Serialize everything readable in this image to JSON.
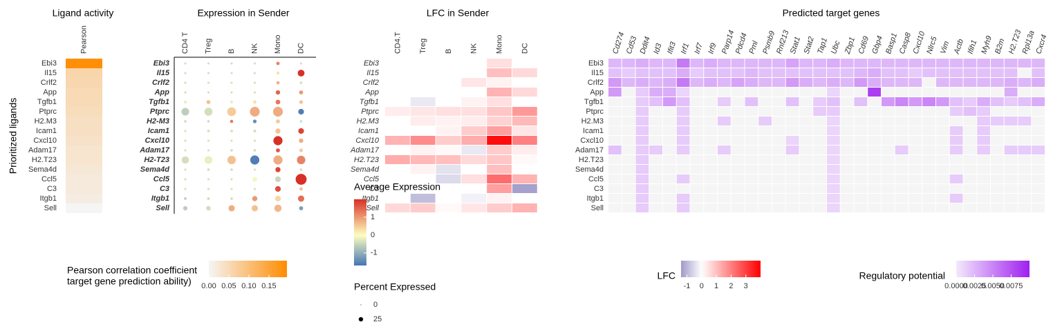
{
  "chart_data": [
    {
      "type": "heatmap",
      "title": "Ligand activity",
      "ylabel": "Prioritized ligands",
      "categories": [
        "Pearson"
      ],
      "rows": [
        "Ebi3",
        "Il15",
        "Crlf2",
        "App",
        "Tgfb1",
        "Ptprc",
        "H2.M3",
        "Icam1",
        "Cxcl10",
        "Adam17",
        "H2.T23",
        "Sema4d",
        "Ccl5",
        "C3",
        "Itgb1",
        "Sell"
      ],
      "values": [
        [
          0.19
        ],
        [
          0.06
        ],
        [
          0.055
        ],
        [
          0.05
        ],
        [
          0.05
        ],
        [
          0.045
        ],
        [
          0.04
        ],
        [
          0.04
        ],
        [
          0.035
        ],
        [
          0.03
        ],
        [
          0.03
        ],
        [
          0.025
        ],
        [
          0.02
        ],
        [
          0.02
        ],
        [
          0.015
        ],
        [
          0.0
        ]
      ],
      "colors": [
        "#f5f5f5",
        "#ff8c00"
      ],
      "clim": [
        0,
        0.195
      ],
      "legend_title": [
        "Pearson correlation coefficient",
        "target gene prediction ability)"
      ],
      "cticks": [
        {
          "value": 0,
          "label": "0.00"
        },
        {
          "value": 0.05,
          "label": "0.05"
        },
        {
          "value": 0.1,
          "label": "0.10"
        },
        {
          "value": 0.15,
          "label": "0.15"
        }
      ]
    },
    {
      "type": "dot",
      "title": "Expression in Sender",
      "categories": [
        "CD4 T",
        "Treg",
        "B",
        "NK",
        "Mono",
        "DC"
      ],
      "rows": [
        "Ebi3",
        "Il15",
        "Crlf2",
        "App",
        "Tgfb1",
        "Ptprc",
        "H2-M3",
        "Icam1",
        "Cxcl10",
        "Adam17",
        "H2-T23",
        "Sema4d",
        "Ccl5",
        "C3",
        "Itgb1",
        "Sell"
      ],
      "values": [
        [
          -0.4,
          -0.4,
          -0.4,
          -0.4,
          1.2,
          -0.4
        ],
        [
          -0.4,
          -0.4,
          -0.4,
          -0.4,
          0.3,
          2
        ],
        [
          -0.4,
          -0.4,
          -0.4,
          -0.4,
          0.8,
          -0.4
        ],
        [
          -0.4,
          -0.4,
          -0.4,
          -0.4,
          1.5,
          1
        ],
        [
          -0.2,
          0.6,
          -0.2,
          0.3,
          1.3,
          0.6
        ],
        [
          -0.6,
          -0.4,
          0.5,
          0.8,
          0.8,
          -1.6
        ],
        [
          -0.4,
          -0.4,
          1.3,
          -1.4,
          0.5,
          -0.4
        ],
        [
          -0.4,
          -0.4,
          -0.4,
          -0.4,
          0.6,
          1.8
        ],
        [
          -0.4,
          -0.4,
          -0.4,
          -0.4,
          2,
          0.8
        ],
        [
          -0.4,
          -0.4,
          -0.4,
          -0.4,
          1.6,
          0.5
        ],
        [
          -0.4,
          -0.2,
          0.6,
          -1.6,
          0.8,
          1.2
        ],
        [
          -0.4,
          -0.4,
          -0.4,
          -0.4,
          1.8,
          -0.4
        ],
        [
          -0.4,
          -0.4,
          -0.4,
          -0.1,
          -0.5,
          2
        ],
        [
          -0.4,
          -0.4,
          -0.4,
          -0.4,
          1.7,
          0.6
        ],
        [
          -0.6,
          -0.4,
          -0.4,
          1,
          0.4,
          1.4
        ],
        [
          -0.6,
          -0.4,
          0.8,
          0.6,
          0.7,
          -1.2
        ]
      ],
      "sizes": [
        [
          1,
          1,
          1,
          1,
          5,
          1
        ],
        [
          1,
          1,
          1,
          1,
          3,
          30
        ],
        [
          1,
          1,
          1,
          1,
          4,
          2
        ],
        [
          1,
          1,
          1,
          1,
          10,
          8
        ],
        [
          3,
          8,
          3,
          5,
          12,
          6
        ],
        [
          40,
          45,
          55,
          70,
          70,
          20
        ],
        [
          2,
          2,
          4,
          6,
          8,
          2
        ],
        [
          1,
          2,
          2,
          3,
          15,
          20
        ],
        [
          1,
          1,
          1,
          1,
          60,
          10
        ],
        [
          1,
          1,
          2,
          2,
          8,
          6
        ],
        [
          35,
          40,
          50,
          60,
          60,
          50
        ],
        [
          1,
          2,
          2,
          1,
          15,
          2
        ],
        [
          1,
          1,
          1,
          12,
          20,
          90
        ],
        [
          1,
          1,
          1,
          1,
          20,
          5
        ],
        [
          2,
          3,
          2,
          15,
          20,
          25
        ],
        [
          10,
          12,
          25,
          25,
          35,
          8
        ]
      ],
      "colors": [
        "#4575b4",
        "#ffffbf",
        "#d73027"
      ],
      "color_mid": 0,
      "clim": [
        -1.7,
        2
      ],
      "legend_title": "Average Expression",
      "cticks": [
        1,
        0,
        -1
      ],
      "size_legend_title": "Percent Expressed",
      "size_ticks": [
        0,
        25
      ]
    },
    {
      "type": "heatmap",
      "title": "LFC in Sender",
      "categories": [
        "CD4.T",
        "Treg",
        "B",
        "NK",
        "Mono",
        "DC"
      ],
      "rows": [
        "Ebi3",
        "Il15",
        "Crlf2",
        "App",
        "Tgfb1",
        "Ptprc",
        "H2.M3",
        "Icam1",
        "Cxcl10",
        "Adam17",
        "H2.T23",
        "Sema4d",
        "Ccl5",
        "C3",
        "Itgb1",
        "Sell"
      ],
      "values": [
        [
          0,
          0,
          0,
          0,
          0.5,
          0
        ],
        [
          0,
          0,
          0,
          0,
          1,
          0.6
        ],
        [
          0,
          0,
          0,
          0.4,
          0.2,
          0
        ],
        [
          0,
          0,
          0,
          0,
          1.2,
          0.6
        ],
        [
          0,
          -0.3,
          0,
          0.2,
          0.5,
          0
        ],
        [
          0.3,
          0.4,
          0.5,
          0.5,
          0.9,
          1.6
        ],
        [
          0,
          0.3,
          0.2,
          0.3,
          0.7,
          1.1
        ],
        [
          0,
          0,
          0.2,
          0.8,
          1.5,
          0.4
        ],
        [
          1.2,
          1.8,
          0.8,
          1.3,
          3.8,
          2
        ],
        [
          0,
          0.2,
          0.1,
          -0.3,
          0.8,
          0.3
        ],
        [
          1.3,
          1.1,
          1,
          0.6,
          0.9,
          0.1
        ],
        [
          0,
          0.2,
          -0.4,
          0,
          1,
          0
        ],
        [
          0,
          0,
          -0.5,
          0.5,
          2.3,
          1.2
        ],
        [
          0,
          0,
          0,
          0,
          1.5,
          -1.3
        ],
        [
          0,
          -0.9,
          0,
          -0.2,
          0.2,
          0
        ],
        [
          0.6,
          0.8,
          0.1,
          0.4,
          0.8,
          1.2
        ]
      ],
      "colors": [
        "#9e9ac8",
        "#ffffff",
        "#ff0000"
      ],
      "color_mid": 0,
      "clim": [
        -1.4,
        4
      ],
      "legend_title": "LFC",
      "cticks": [
        -1,
        0,
        1,
        2,
        3
      ]
    },
    {
      "type": "heatmap",
      "title": "Predicted target genes",
      "categories": [
        "Cd274",
        "Cd53",
        "Ddit4",
        "Id3",
        "Ifit3",
        "Irf1",
        "Irf7",
        "Irf9",
        "Parp14",
        "Pdcd4",
        "Pml",
        "Psmb9",
        "Rnf213",
        "Stat1",
        "Stat2",
        "Tap1",
        "Ubc",
        "Zbp1",
        "Cd69",
        "Gbp4",
        "Basp1",
        "Casp8",
        "Cxcl10",
        "Nlrc5",
        "Vim",
        "Actb",
        "Ifih1",
        "Myh9",
        "B2m",
        "H2.T23",
        "Rpl13a",
        "Cxcr4"
      ],
      "rows": [
        "Ebi3",
        "Il15",
        "Crlf2",
        "App",
        "Tgfb1",
        "Ptprc",
        "H2.M3",
        "Icam1",
        "Cxcl10",
        "Adam17",
        "H2.T23",
        "Sema4d",
        "Ccl5",
        "C3",
        "Itgb1",
        "Sell"
      ],
      "values": [
        [
          0.0025,
          0.0025,
          0.003,
          0.0025,
          0.0025,
          0.0055,
          0.0025,
          0.003,
          0.0025,
          0.0025,
          0.0025,
          0.0025,
          0.0025,
          0.0035,
          0.0025,
          0.0025,
          0.003,
          0.0025,
          0.0025,
          0.0025,
          0.0025,
          0.0025,
          0.0025,
          0.0025,
          0.0025,
          0.0025,
          0.0025,
          0.0025,
          0.0025,
          0.0025,
          0.0025,
          0.0025
        ],
        [
          0.002,
          0.0015,
          0.002,
          0.002,
          0.002,
          0.003,
          0.0015,
          0.002,
          0.002,
          0.002,
          0.0025,
          0.002,
          0.002,
          0.002,
          0.002,
          0.002,
          0.002,
          0.002,
          0.0025,
          0.003,
          0.002,
          0.002,
          0.0015,
          0.002,
          0.002,
          0.002,
          0.002,
          0.002,
          0.002,
          0.002,
          0,
          0.002
        ],
        [
          0.004,
          0.0025,
          0.003,
          0.0025,
          0.003,
          0.0055,
          0.0025,
          0.003,
          0.0025,
          0.0035,
          0.003,
          0.0025,
          0.0025,
          0.004,
          0.003,
          0.0025,
          0.003,
          0.0025,
          0.004,
          0.003,
          0.0025,
          0.0025,
          0.0025,
          0,
          0.0025,
          0.0025,
          0.0025,
          0.0025,
          0.0025,
          0.003,
          0.0025,
          0.003
        ],
        [
          0.004,
          0,
          0.0015,
          0.003,
          0.003,
          0.001,
          0,
          0,
          0,
          0,
          0,
          0,
          0,
          0,
          0,
          0,
          0.001,
          0,
          0,
          0.0085,
          0,
          0,
          0,
          0,
          0,
          0,
          0,
          0,
          0,
          0.003,
          0,
          0
        ],
        [
          0,
          0,
          0.0015,
          0.002,
          0.004,
          0.002,
          0,
          0,
          0.0015,
          0,
          0.002,
          0,
          0,
          0.002,
          0,
          0.0015,
          0.002,
          0,
          0.002,
          0,
          0.004,
          0.005,
          0.004,
          0.005,
          0.004,
          0.002,
          0.0015,
          0.003,
          0.002,
          0.0015,
          0.002,
          0.003
        ],
        [
          0,
          0,
          0.0015,
          0,
          0,
          0.0015,
          0,
          0,
          0,
          0,
          0,
          0,
          0,
          0,
          0,
          0.0015,
          0.0015,
          0,
          0,
          0,
          0,
          0,
          0,
          0,
          0,
          0.0015,
          0.002,
          0.0015,
          0,
          0,
          0,
          0
        ],
        [
          0,
          0,
          0.0015,
          0,
          0,
          0.0015,
          0,
          0,
          0.0015,
          0,
          0,
          0.0015,
          0,
          0,
          0,
          0,
          0.001,
          0,
          0,
          0,
          0,
          0,
          0,
          0,
          0,
          0,
          0,
          0.0015,
          0.0015,
          0.0015,
          0.0015,
          0
        ],
        [
          0,
          0,
          0.0015,
          0,
          0,
          0.0015,
          0,
          0,
          0,
          0,
          0,
          0,
          0,
          0,
          0,
          0,
          0.001,
          0,
          0,
          0,
          0,
          0,
          0,
          0,
          0,
          0.0015,
          0,
          0.0015,
          0,
          0,
          0,
          0
        ],
        [
          0,
          0,
          0.0015,
          0,
          0,
          0.0015,
          0,
          0,
          0,
          0,
          0,
          0,
          0,
          0.001,
          0,
          0,
          0.001,
          0,
          0,
          0,
          0,
          0,
          0,
          0,
          0,
          0.0015,
          0,
          0.0015,
          0,
          0,
          0,
          0
        ],
        [
          0.002,
          0,
          0.0015,
          0.0015,
          0,
          0.0015,
          0,
          0,
          0.0015,
          0,
          0,
          0,
          0,
          0.0015,
          0,
          0,
          0.001,
          0,
          0,
          0,
          0,
          0.0015,
          0,
          0,
          0,
          0.0015,
          0,
          0.0015,
          0,
          0.0015,
          0.0015,
          0.0015
        ],
        [
          0,
          0,
          0.0015,
          0,
          0,
          0,
          0,
          0,
          0,
          0,
          0,
          0,
          0,
          0,
          0,
          0,
          0.001,
          0,
          0,
          0,
          0,
          0,
          0,
          0,
          0,
          0,
          0,
          0,
          0,
          0,
          0,
          0
        ],
        [
          0,
          0,
          0.0015,
          0,
          0,
          0,
          0,
          0,
          0,
          0,
          0,
          0,
          0,
          0,
          0,
          0,
          0.001,
          0,
          0,
          0,
          0,
          0,
          0,
          0,
          0,
          0,
          0,
          0,
          0,
          0,
          0,
          0
        ],
        [
          0,
          0,
          0.0015,
          0,
          0,
          0.0015,
          0,
          0,
          0,
          0,
          0,
          0,
          0,
          0,
          0,
          0,
          0.001,
          0,
          0,
          0,
          0,
          0,
          0,
          0,
          0,
          0.0015,
          0,
          0,
          0,
          0,
          0,
          0
        ],
        [
          0,
          0,
          0.0015,
          0,
          0,
          0,
          0,
          0,
          0,
          0,
          0,
          0,
          0,
          0,
          0,
          0,
          0.001,
          0,
          0,
          0,
          0,
          0,
          0,
          0,
          0,
          0,
          0,
          0,
          0,
          0,
          0,
          0
        ],
        [
          0,
          0,
          0.0015,
          0,
          0,
          0.0015,
          0,
          0,
          0,
          0,
          0,
          0,
          0,
          0,
          0,
          0,
          0.001,
          0,
          0,
          0,
          0,
          0,
          0,
          0,
          0,
          0.0015,
          0,
          0,
          0,
          0,
          0,
          0
        ],
        [
          0,
          0,
          0.0015,
          0,
          0,
          0.0015,
          0,
          0,
          0,
          0,
          0,
          0,
          0,
          0,
          0,
          0,
          0.001,
          0,
          0,
          0,
          0,
          0,
          0,
          0,
          0,
          0,
          0,
          0,
          0,
          0,
          0,
          0
        ]
      ],
      "colors": [
        "#f3e9fc",
        "#a020f0"
      ],
      "zero_color": "#f5f5f5",
      "clim": [
        0,
        0.01
      ],
      "legend_title": "Regulatory potential",
      "cticks": [
        {
          "value": 0,
          "label": "0.0000"
        },
        {
          "value": 0.0025,
          "label": "0.0025"
        },
        {
          "value": 0.005,
          "label": "0.0050"
        },
        {
          "value": 0.0075,
          "label": "0.0075"
        }
      ]
    }
  ]
}
